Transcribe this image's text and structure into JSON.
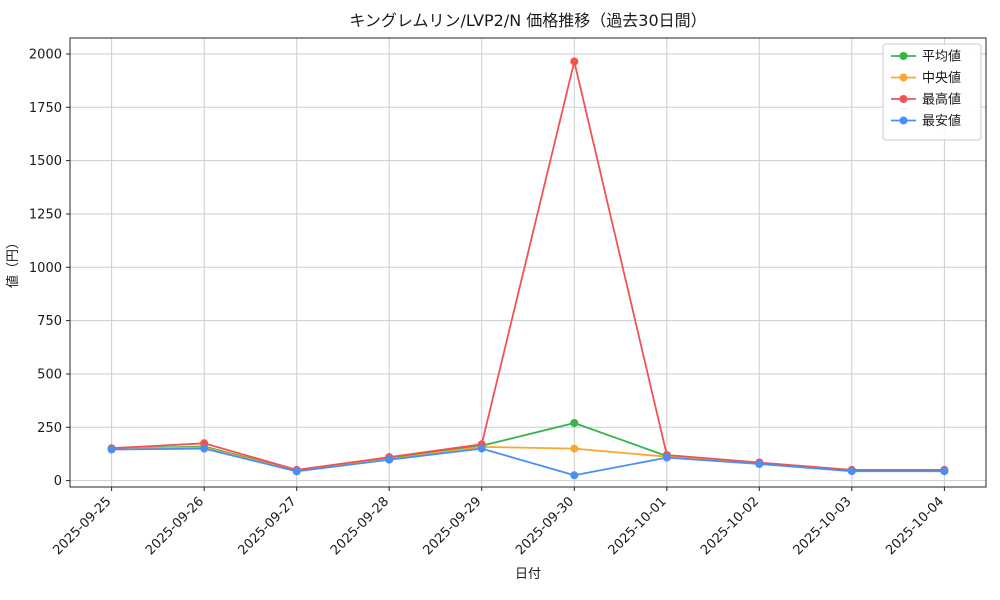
{
  "chart_data": {
    "type": "line",
    "title": "キングレムリン/LVP2/N 価格推移（過去30日間）",
    "xlabel": "日付",
    "ylabel": "値（円）",
    "categories": [
      "2025-09-25",
      "2025-09-26",
      "2025-09-27",
      "2025-09-28",
      "2025-09-29",
      "2025-09-30",
      "2025-10-01",
      "2025-10-02",
      "2025-10-03",
      "2025-10-04"
    ],
    "yticks": [
      0,
      250,
      500,
      750,
      1000,
      1250,
      1500,
      1750,
      2000
    ],
    "ylim": [
      -30,
      2075
    ],
    "grid": true,
    "legend_position": "upper right",
    "series": [
      {
        "key": "average",
        "name": "平均値",
        "color": "#33b54a",
        "values": [
          150,
          160,
          48,
          105,
          163,
          270,
          115,
          82,
          48,
          48
        ]
      },
      {
        "key": "median",
        "name": "中央値",
        "color": "#ffa42e",
        "values": [
          150,
          155,
          45,
          100,
          158,
          150,
          112,
          80,
          46,
          46
        ]
      },
      {
        "key": "max",
        "name": "最高値",
        "color": "#f25352",
        "values": [
          152,
          175,
          50,
          110,
          170,
          1965,
          120,
          85,
          50,
          50
        ]
      },
      {
        "key": "min",
        "name": "最安値",
        "color": "#4a90f2",
        "values": [
          146,
          150,
          43,
          98,
          150,
          25,
          108,
          78,
          44,
          44
        ]
      }
    ]
  },
  "theme": {
    "grid_color": "#cdcdcd",
    "spine_color": "#262626",
    "text_color": "#1a1a1a",
    "background": "#ffffff"
  }
}
